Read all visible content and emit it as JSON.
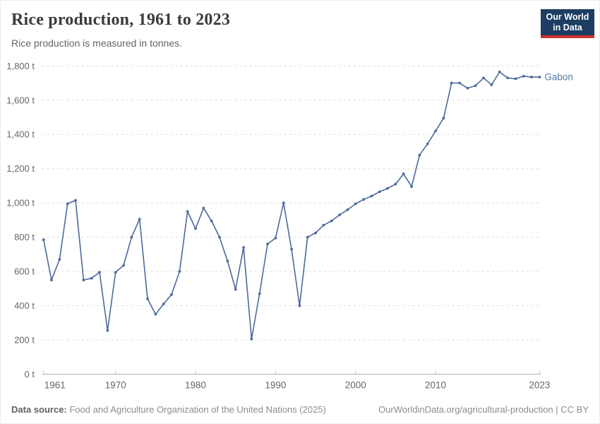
{
  "header": {
    "title": "Rice production, 1961 to 2023",
    "subtitle": "Rice production is measured in tonnes.",
    "logo": {
      "line1": "Our World",
      "line2": "in Data",
      "bg_color": "#1d3d63",
      "bar_color": "#cc342b"
    }
  },
  "chart_data": {
    "type": "line",
    "title": "Rice production, 1961 to 2023",
    "xlabel": "",
    "ylabel": "tonnes",
    "unit": " t",
    "xlim": [
      1961,
      2023
    ],
    "ylim": [
      0,
      1800
    ],
    "grid": true,
    "legend_position": "end-of-line",
    "x_ticks": [
      1961,
      1970,
      1980,
      1990,
      2000,
      2010,
      2023
    ],
    "y_ticks": [
      0,
      200,
      400,
      600,
      800,
      1000,
      1200,
      1400,
      1600,
      1800
    ],
    "y_tick_labels": [
      "0 t",
      "200 t",
      "400 t",
      "600 t",
      "800 t",
      "1,000 t",
      "1,200 t",
      "1,400 t",
      "1,600 t",
      "1,800 t"
    ],
    "series": [
      {
        "name": "Gabon",
        "color": "#4C6A9C",
        "label_color": "#577CA8",
        "x": [
          1961,
          1962,
          1963,
          1964,
          1965,
          1966,
          1967,
          1968,
          1969,
          1970,
          1971,
          1972,
          1973,
          1974,
          1975,
          1976,
          1977,
          1978,
          1979,
          1980,
          1981,
          1982,
          1983,
          1984,
          1985,
          1986,
          1987,
          1988,
          1989,
          1990,
          1991,
          1992,
          1993,
          1994,
          1995,
          1996,
          1997,
          1998,
          1999,
          2000,
          2001,
          2002,
          2003,
          2004,
          2005,
          2006,
          2007,
          2008,
          2009,
          2010,
          2011,
          2012,
          2013,
          2014,
          2015,
          2016,
          2017,
          2018,
          2019,
          2020,
          2021,
          2022,
          2023
        ],
        "values": [
          785,
          550,
          670,
          995,
          1015,
          550,
          560,
          595,
          255,
          595,
          635,
          800,
          905,
          440,
          350,
          410,
          465,
          600,
          950,
          850,
          970,
          895,
          800,
          660,
          495,
          740,
          205,
          470,
          760,
          795,
          1000,
          730,
          400,
          800,
          825,
          870,
          895,
          930,
          960,
          995,
          1020,
          1040,
          1065,
          1085,
          1110,
          1170,
          1095,
          1280,
          1345,
          1420,
          1495,
          1700,
          1700,
          1670,
          1685,
          1730,
          1690,
          1765,
          1730,
          1725,
          1740,
          1735,
          1735
        ]
      }
    ]
  },
  "footer": {
    "source_label": "Data source:",
    "source_text": " Food and Agriculture Organization of the United Nations (2025)",
    "credit": "OurWorldinData.org/agricultural-production | CC BY"
  }
}
